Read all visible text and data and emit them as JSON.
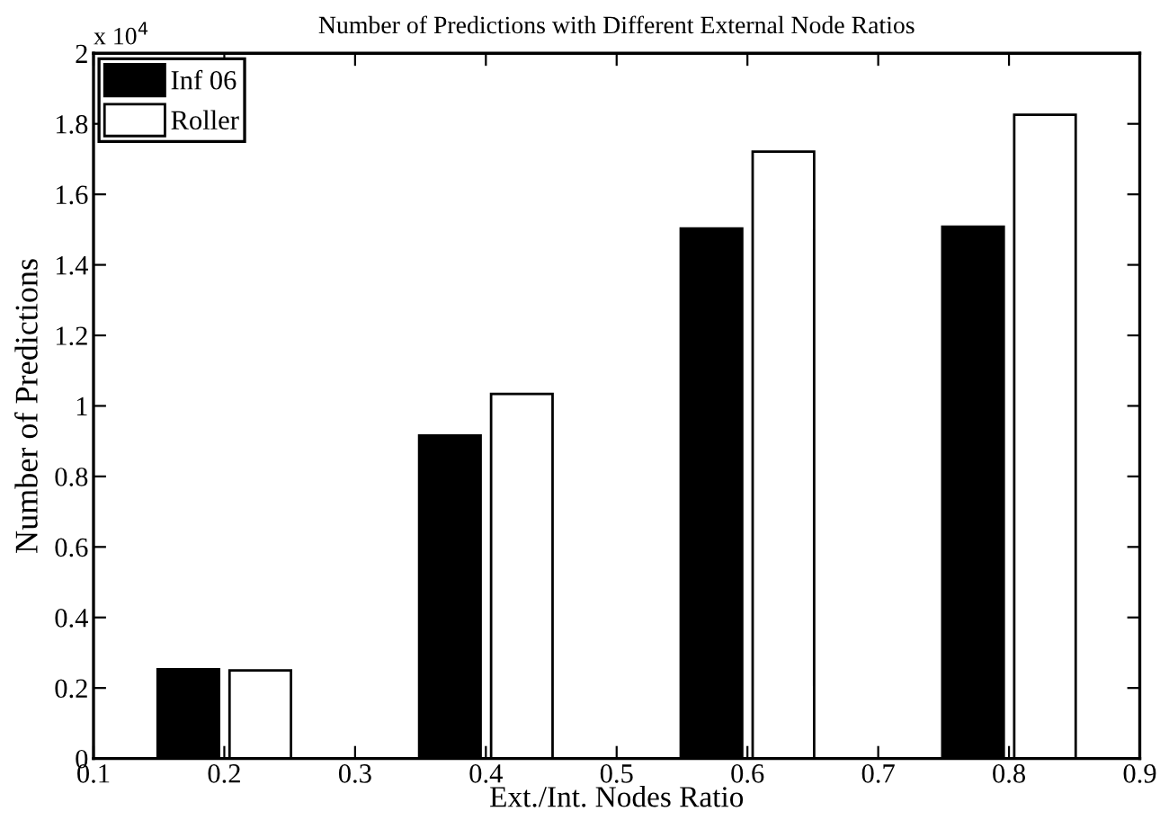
{
  "chart_data": {
    "type": "bar",
    "title": "Number of Predictions with Different External Node Ratios",
    "xlabel": "Ext./Int. Nodes Ratio",
    "ylabel": "Number of Predictions",
    "x": [
      0.2,
      0.4,
      0.6,
      0.8
    ],
    "series": [
      {
        "name": "Inf 06",
        "color": "#000000",
        "values": [
          0.253,
          0.916,
          1.503,
          1.508
        ]
      },
      {
        "name": "Roller",
        "color": "#ffffff",
        "values": [
          0.25,
          1.034,
          1.721,
          1.826
        ]
      }
    ],
    "xlim": [
      0.1,
      0.9
    ],
    "xticks": [
      0.1,
      0.2,
      0.3,
      0.4,
      0.5,
      0.6,
      0.7,
      0.8,
      0.9
    ],
    "ylim": [
      0,
      2
    ],
    "yticks": [
      0,
      0.2,
      0.4,
      0.6,
      0.8,
      1,
      1.2,
      1.4,
      1.6,
      1.8,
      2
    ],
    "annotations": [
      "x 10$^{4}$"
    ],
    "legend": "top left",
    "grid": false
  }
}
